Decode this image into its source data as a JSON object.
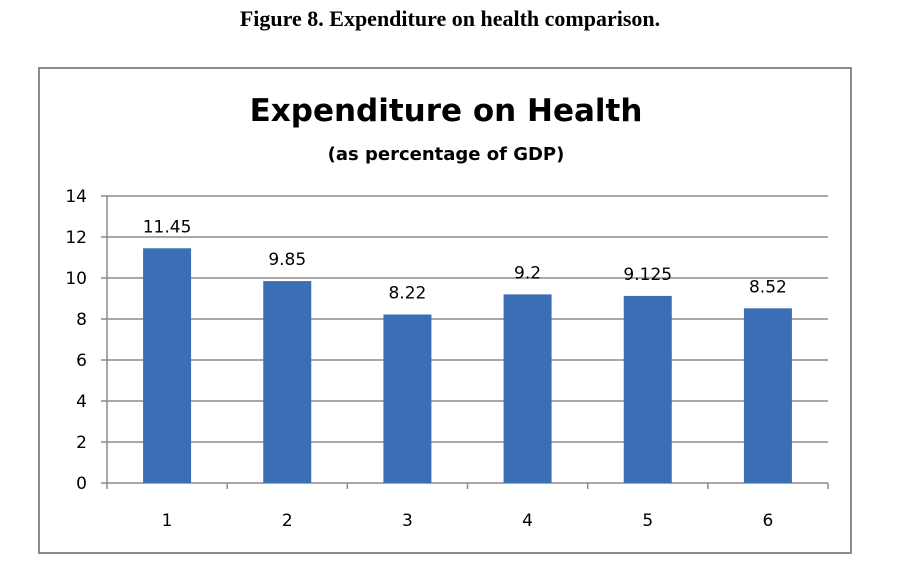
{
  "figure": {
    "caption": "Figure 8.  Expenditure on health comparison."
  },
  "chart_data": {
    "type": "bar",
    "title": "Expenditure on Health",
    "subtitle": "(as percentage of GDP)",
    "categories": [
      "1",
      "2",
      "3",
      "4",
      "5",
      "6"
    ],
    "values": [
      11.45,
      9.85,
      8.22,
      9.2,
      9.125,
      8.52
    ],
    "data_labels": [
      "11.45",
      "9.85",
      "8.22",
      "9.2",
      "9.125",
      "8.52"
    ],
    "ylim": [
      0,
      14
    ],
    "yticks": [
      0,
      2,
      4,
      6,
      8,
      10,
      12,
      14
    ],
    "grid": true,
    "legend": "none",
    "bar_color": "#3A6FB5",
    "grid_color": "#8C8C8C"
  }
}
